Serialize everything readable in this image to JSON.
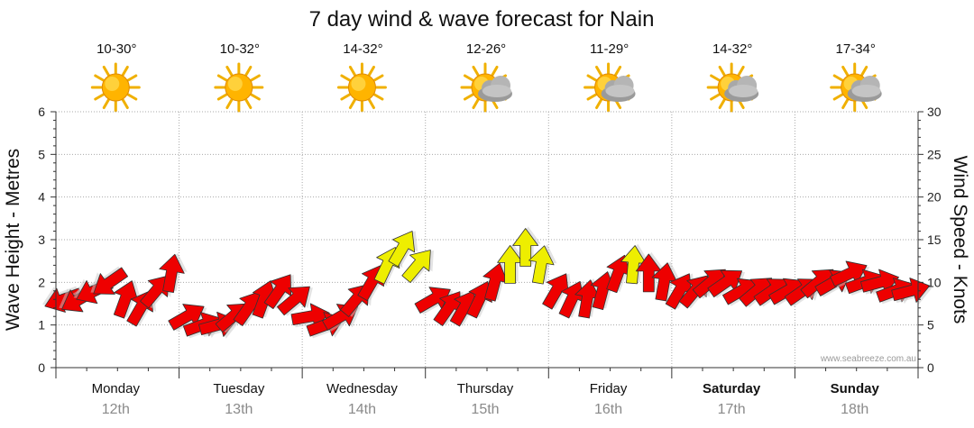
{
  "chart_data": {
    "type": "scatter",
    "title": "7 day wind & wave forecast for Nain",
    "y_left_label": "Wave Height - Metres",
    "y_right_label": "Wind Speed - Knots",
    "y_left_range": [
      0,
      6
    ],
    "y_right_range": [
      0,
      30
    ],
    "y_left_ticks": [
      "0",
      "1",
      "2",
      "3",
      "4",
      "5",
      "6"
    ],
    "y_right_ticks": [
      "0",
      "5",
      "10",
      "15",
      "20",
      "25",
      "30"
    ],
    "grid": true,
    "credit": "www.seabreeze.com.au",
    "days": [
      {
        "name": "Monday",
        "date": "12th",
        "temp": "10-30°",
        "weather": "sunny",
        "bold": false
      },
      {
        "name": "Tuesday",
        "date": "13th",
        "temp": "10-32°",
        "weather": "sunny",
        "bold": false
      },
      {
        "name": "Wednesday",
        "date": "14th",
        "temp": "14-32°",
        "weather": "sunny",
        "bold": false
      },
      {
        "name": "Thursday",
        "date": "15th",
        "temp": "12-26°",
        "weather": "partly-cloudy",
        "bold": false
      },
      {
        "name": "Friday",
        "date": "16th",
        "temp": "11-29°",
        "weather": "partly-cloudy",
        "bold": false
      },
      {
        "name": "Saturday",
        "date": "17th",
        "temp": "14-32°",
        "weather": "partly-cloudy",
        "bold": true
      },
      {
        "name": "Sunday",
        "date": "18th",
        "temp": "17-34°",
        "weather": "partly-cloudy",
        "bold": true
      }
    ],
    "wind_series": {
      "name": "Wind arrows",
      "hours_per_point": 3,
      "speed_knots": [
        8,
        8,
        9,
        10,
        8,
        7,
        9,
        11,
        6,
        5,
        5,
        6,
        7,
        8,
        9,
        8,
        6,
        5,
        6,
        8,
        10,
        12,
        14,
        12,
        8,
        7,
        7,
        8,
        10,
        12,
        14,
        12,
        9,
        8,
        8,
        9,
        11,
        12,
        11,
        10,
        9,
        9,
        10,
        10,
        9,
        9,
        9,
        9,
        9,
        10,
        10,
        11,
        10,
        10,
        9,
        9
      ],
      "direction_deg": [
        70,
        60,
        65,
        55,
        200,
        210,
        220,
        190,
        240,
        250,
        255,
        230,
        215,
        200,
        215,
        230,
        260,
        250,
        240,
        220,
        210,
        205,
        210,
        220,
        240,
        215,
        210,
        205,
        195,
        180,
        180,
        190,
        210,
        205,
        190,
        195,
        200,
        185,
        180,
        190,
        210,
        220,
        230,
        235,
        240,
        230,
        235,
        240,
        235,
        230,
        240,
        245,
        250,
        255,
        250,
        255
      ],
      "colors": {
        "light": "#ee0000",
        "strong": "#eeee00",
        "outline": "#333333"
      },
      "strong_threshold_knots": 12
    }
  }
}
